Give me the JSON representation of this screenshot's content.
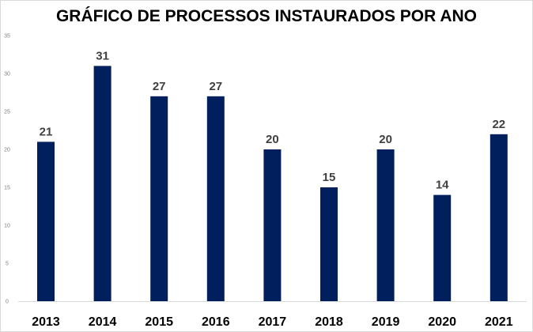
{
  "chart_data": {
    "type": "bar",
    "title": "GRÁFICO DE PROCESSOS INSTAURADOS POR ANO",
    "categories": [
      "2013",
      "2014",
      "2015",
      "2016",
      "2017",
      "2018",
      "2019",
      "2020",
      "2021"
    ],
    "values": [
      21,
      31,
      27,
      27,
      20,
      15,
      20,
      14,
      22
    ],
    "xlabel": "",
    "ylabel": "",
    "ylim": [
      0,
      35
    ],
    "yticks": [
      0,
      5,
      10,
      15,
      20,
      25,
      30,
      35
    ],
    "grid": false,
    "data_labels": true,
    "bar_color": "#001f5c"
  }
}
